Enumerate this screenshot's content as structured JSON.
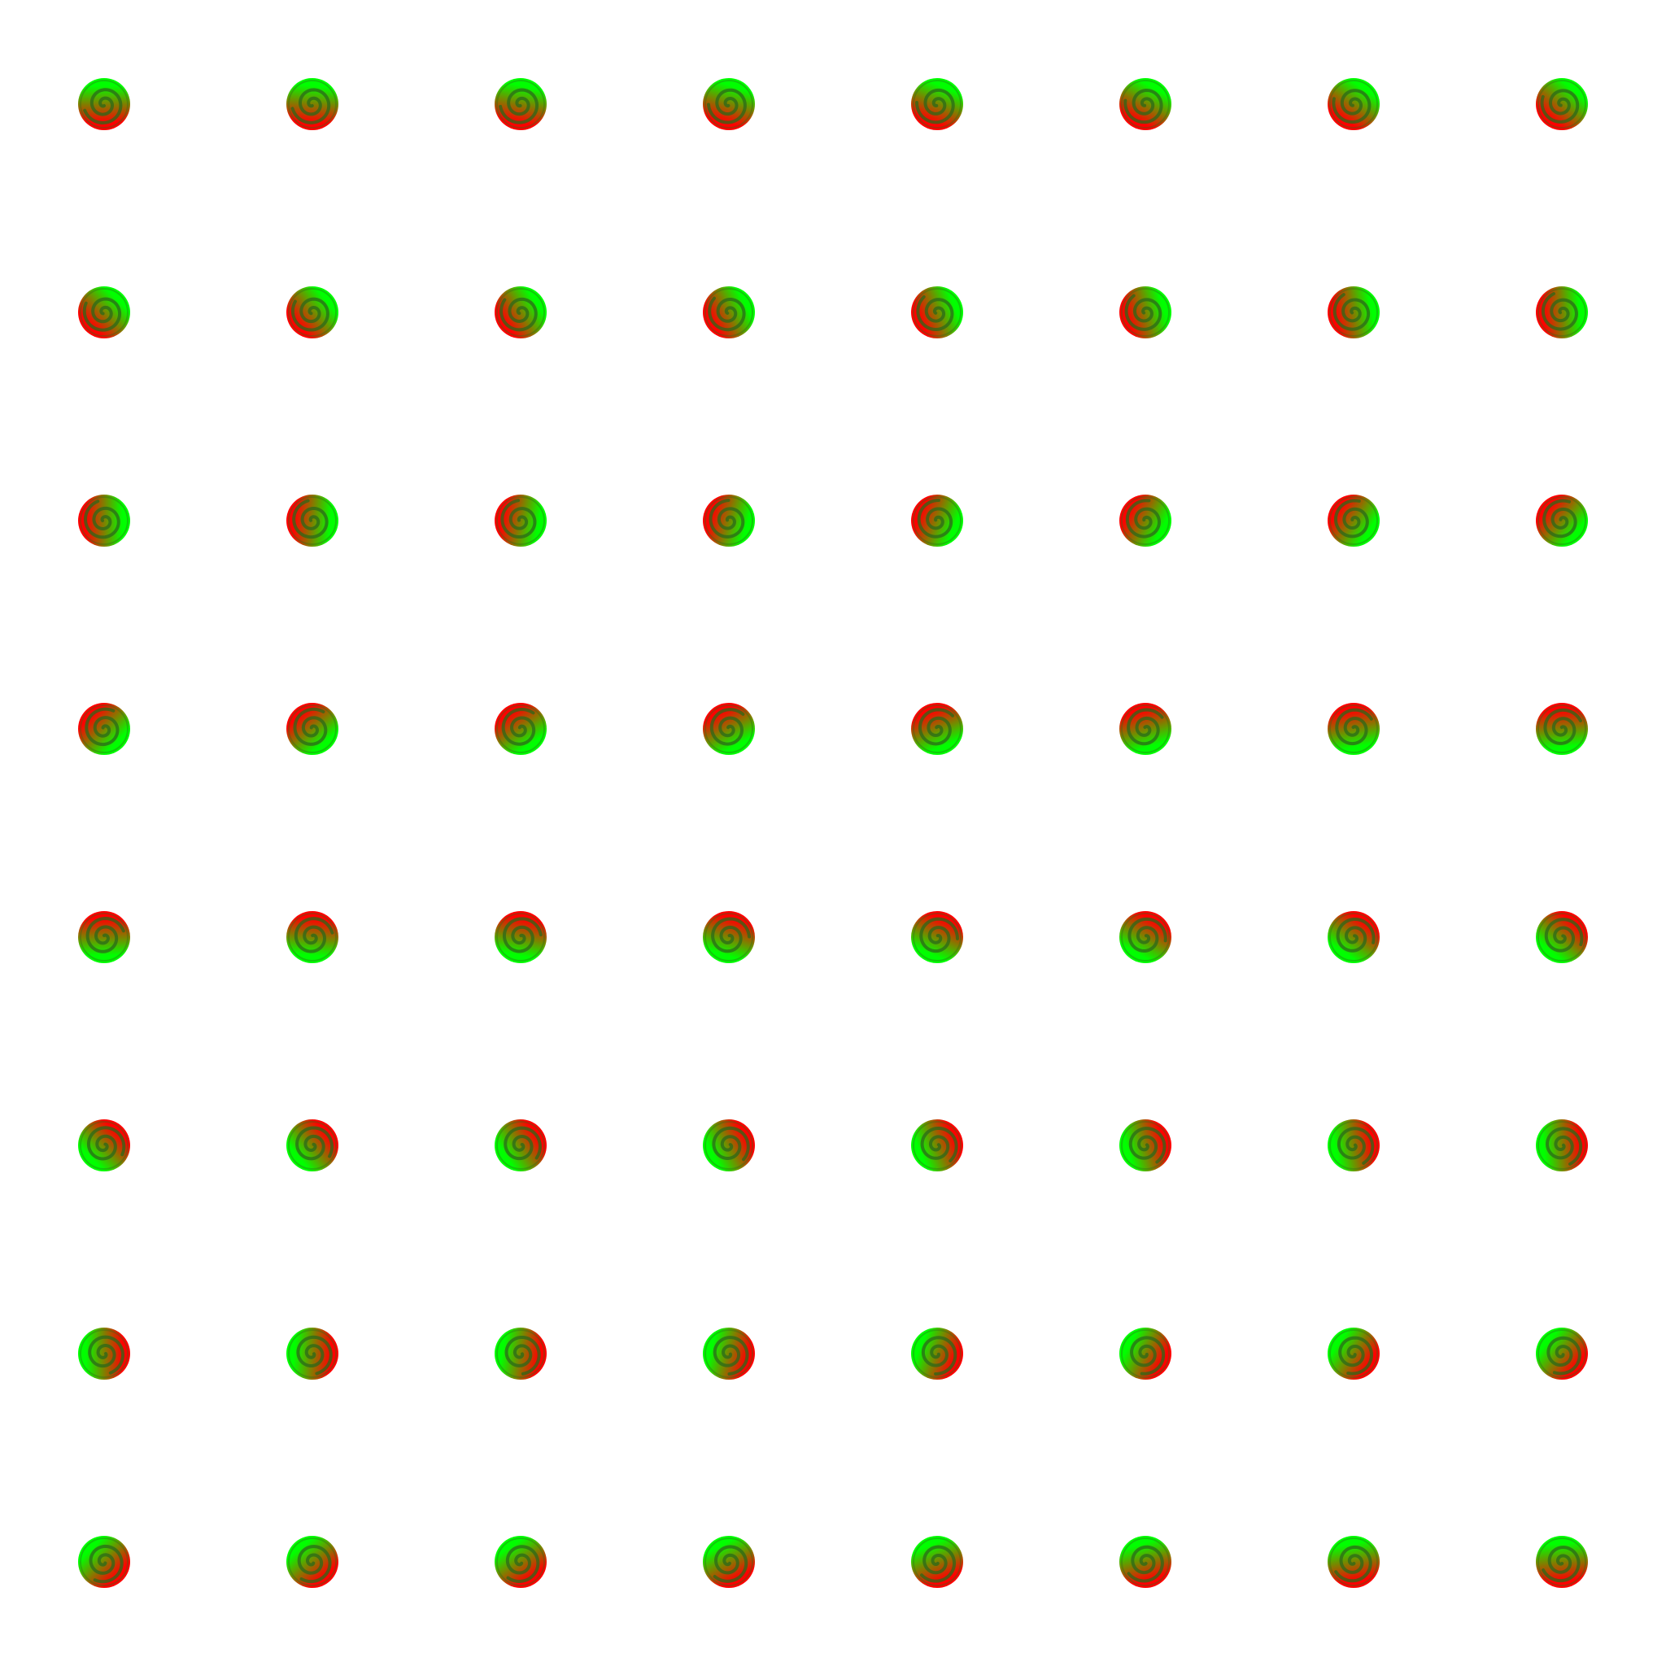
{
  "grid": {
    "rows": 8,
    "cols": 8
  },
  "swirl": {
    "color_a": "#00ff00",
    "color_b": "#ff0000",
    "spiral_color": "#2a6a1a",
    "background": "#ffffff"
  }
}
